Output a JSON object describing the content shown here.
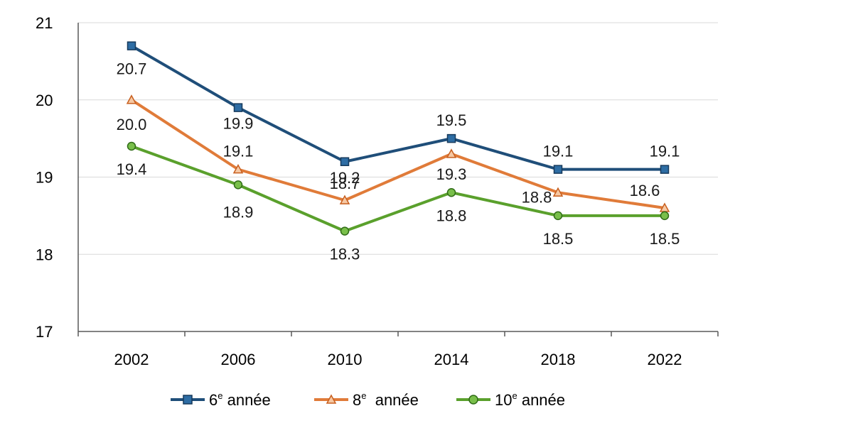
{
  "chart_data": {
    "type": "line",
    "title": "",
    "xlabel": "",
    "ylabel": "",
    "categories": [
      "2002",
      "2006",
      "2010",
      "2014",
      "2018",
      "2022"
    ],
    "ylim": [
      17,
      21
    ],
    "yticks": [
      17,
      18,
      19,
      20,
      21
    ],
    "grid": true,
    "legend_position": "bottom",
    "series": [
      {
        "name": "6e année",
        "color": "#1f4e79",
        "marker": "square",
        "values": [
          20.7,
          19.9,
          19.2,
          19.5,
          19.1,
          19.1
        ],
        "labels": [
          "20.7",
          "19.9",
          "19.2",
          "19.5",
          "19.1",
          "19.1"
        ]
      },
      {
        "name": "8e année",
        "color": "#e07b39",
        "marker": "triangle",
        "values": [
          20.0,
          19.1,
          18.7,
          19.3,
          18.8,
          18.6
        ],
        "labels": [
          "20.0",
          "19.1",
          "18.7",
          "19.3",
          "18.8",
          "18.6"
        ]
      },
      {
        "name": "10e année",
        "color": "#5aa02c",
        "marker": "circle",
        "values": [
          19.4,
          18.9,
          18.3,
          18.8,
          18.5,
          18.5
        ],
        "labels": [
          "19.4",
          "18.9",
          "18.3",
          "18.8",
          "18.5",
          "18.5"
        ]
      }
    ]
  },
  "legend": [
    {
      "num": "6",
      "sup": "e",
      "rest": " année"
    },
    {
      "num": "8",
      "sup": "e",
      "rest": "  année"
    },
    {
      "num": "10",
      "sup": "e",
      "rest": " année"
    }
  ]
}
